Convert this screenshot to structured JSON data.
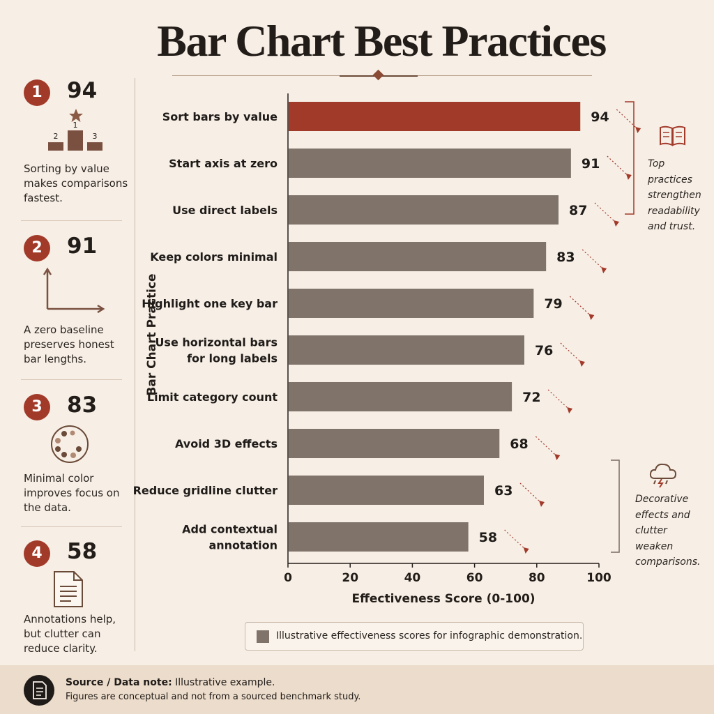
{
  "title": "Bar Chart Best Practices",
  "sidebar": [
    {
      "num": "1",
      "score": "94",
      "desc": "Sorting by value makes comparisons fastest.",
      "icon": "podium-icon",
      "podium": [
        "2",
        "1",
        "3"
      ]
    },
    {
      "num": "2",
      "score": "91",
      "desc": "A zero baseline preserves honest bar lengths.",
      "icon": "axes-icon"
    },
    {
      "num": "3",
      "score": "83",
      "desc": "Minimal color improves focus on the data.",
      "icon": "palette-icon"
    },
    {
      "num": "4",
      "score": "58",
      "desc": "Annotations help, but clutter can reduce clarity.",
      "icon": "document-icon"
    }
  ],
  "notes": {
    "top": "Top practices strengthen readability and trust.",
    "bottom": "Decorative effects and clutter weaken comparisons.",
    "top_icon": "book-icon",
    "bottom_icon": "storm-cloud-icon"
  },
  "legend": "Illustrative effectiveness scores for infographic demonstration.",
  "footer": {
    "label": "Source / Data note:",
    "text1": "Illustrative example.",
    "text2": "Figures are conceptual and not from a sourced benchmark study.",
    "icon": "document-icon"
  },
  "colors": {
    "highlight": "#a23a2a",
    "bar": "#7f736a",
    "background": "#f7efe6"
  },
  "chart_data": {
    "type": "bar",
    "orientation": "horizontal",
    "categories": [
      [
        "Sort bars by value"
      ],
      [
        "Start axis at zero"
      ],
      [
        "Use direct labels"
      ],
      [
        "Keep colors minimal"
      ],
      [
        "Highlight one key bar"
      ],
      [
        "Use horizontal bars",
        "for long labels"
      ],
      [
        "Limit category count"
      ],
      [
        "Avoid 3D effects"
      ],
      [
        "Reduce gridline clutter"
      ],
      [
        "Add contextual",
        "annotation"
      ]
    ],
    "values": [
      94,
      91,
      87,
      83,
      79,
      76,
      72,
      68,
      63,
      58
    ],
    "highlight_index": 0,
    "xlabel": "Effectiveness Score (0-100)",
    "ylabel": "Bar Chart Practice",
    "xlim": [
      0,
      100
    ],
    "xticks": [
      0,
      20,
      40,
      60,
      80,
      100
    ],
    "grid": false,
    "legend": "bottom"
  }
}
